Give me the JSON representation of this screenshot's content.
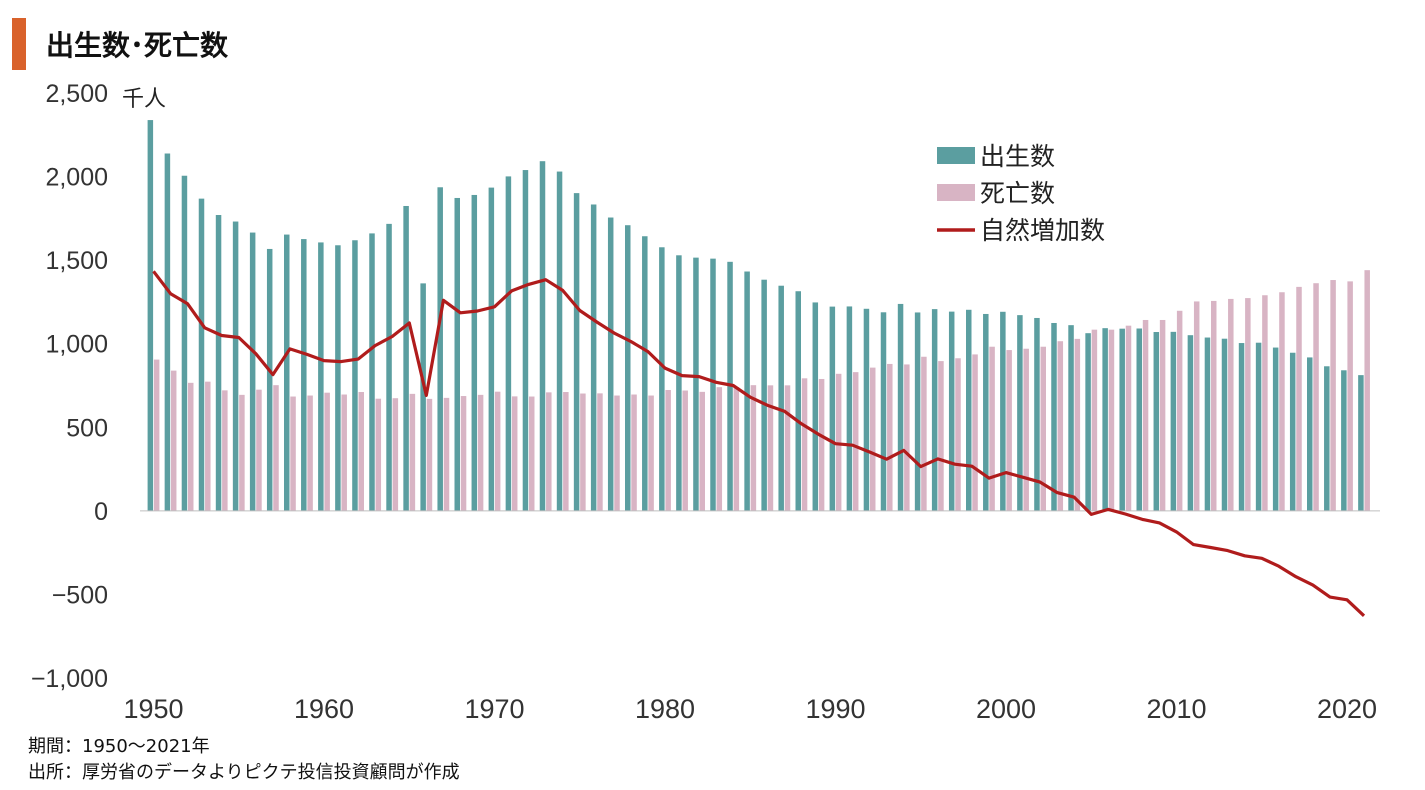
{
  "header": {
    "title": "出生数･死亡数",
    "accent_color": "#d9622b"
  },
  "footnotes": {
    "period": "期間：1950～2021年",
    "source": "出所：厚労省のデータよりピクテ投信投資顧問が作成"
  },
  "chart_data": {
    "type": "bar",
    "unit_label": "千人",
    "ylim": [
      -1000,
      2500
    ],
    "y_ticks": [
      2500,
      2000,
      1500,
      1000,
      500,
      0,
      -500,
      -1000
    ],
    "y_tick_labels": [
      "2,500",
      "2,000",
      "1,500",
      "1,000",
      "500",
      "0",
      "−500",
      "−1,000"
    ],
    "x_tick_labels": [
      "1950",
      "1960",
      "1970",
      "1980",
      "1990",
      "2000",
      "2010",
      "2020"
    ],
    "legend_position": "top-right",
    "grid": false,
    "colors": {
      "births": "#5b9ea0",
      "deaths": "#d8b4c4",
      "natural": "#b01c1c",
      "negative_tick": "#c0272d"
    },
    "x": [
      1950,
      1951,
      1952,
      1953,
      1954,
      1955,
      1956,
      1957,
      1958,
      1959,
      1960,
      1961,
      1962,
      1963,
      1964,
      1965,
      1966,
      1967,
      1968,
      1969,
      1970,
      1971,
      1972,
      1973,
      1974,
      1975,
      1976,
      1977,
      1978,
      1979,
      1980,
      1981,
      1982,
      1983,
      1984,
      1985,
      1986,
      1987,
      1988,
      1989,
      1990,
      1991,
      1992,
      1993,
      1994,
      1995,
      1996,
      1997,
      1998,
      1999,
      2000,
      2001,
      2002,
      2003,
      2004,
      2005,
      2006,
      2007,
      2008,
      2009,
      2010,
      2011,
      2012,
      2013,
      2014,
      2015,
      2016,
      2017,
      2018,
      2019,
      2020,
      2021
    ],
    "series": [
      {
        "name": "出生数",
        "kind": "bar",
        "values": [
          2338,
          2138,
          2005,
          1868,
          1770,
          1731,
          1665,
          1567,
          1653,
          1626,
          1606,
          1589,
          1619,
          1660,
          1717,
          1824,
          1361,
          1936,
          1872,
          1890,
          1934,
          2001,
          2039,
          2092,
          2030,
          1901,
          1833,
          1755,
          1709,
          1643,
          1577,
          1529,
          1515,
          1509,
          1490,
          1432,
          1383,
          1347,
          1314,
          1247,
          1222,
          1223,
          1209,
          1188,
          1238,
          1187,
          1207,
          1192,
          1203,
          1178,
          1191,
          1171,
          1154,
          1124,
          1111,
          1063,
          1093,
          1090,
          1091,
          1070,
          1071,
          1051,
          1037,
          1030,
          1004,
          1006,
          977,
          946,
          918,
          865,
          841,
          812
        ]
      },
      {
        "name": "死亡数",
        "kind": "bar",
        "values": [
          905,
          839,
          766,
          773,
          721,
          694,
          725,
          752,
          684,
          690,
          707,
          696,
          711,
          671,
          674,
          700,
          670,
          676,
          687,
          694,
          713,
          685,
          684,
          709,
          711,
          702,
          703,
          690,
          696,
          690,
          723,
          720,
          712,
          740,
          740,
          752,
          751,
          751,
          793,
          789,
          820,
          830,
          857,
          879,
          876,
          922,
          896,
          913,
          936,
          982,
          962,
          970,
          982,
          1015,
          1029,
          1084,
          1084,
          1108,
          1142,
          1142,
          1197,
          1253,
          1256,
          1268,
          1273,
          1290,
          1308,
          1340,
          1362,
          1381,
          1373,
          1440
        ]
      },
      {
        "name": "自然増加数",
        "kind": "line",
        "values": [
          1433,
          1299,
          1239,
          1095,
          1049,
          1037,
          940,
          815,
          969,
          936,
          899,
          893,
          908,
          989,
          1043,
          1124,
          691,
          1260,
          1185,
          1196,
          1221,
          1316,
          1355,
          1383,
          1319,
          1199,
          1130,
          1065,
          1013,
          953,
          854,
          809,
          803,
          769,
          750,
          680,
          632,
          596,
          521,
          458,
          402,
          393,
          352,
          309,
          362,
          265,
          311,
          279,
          267,
          196,
          229,
          201,
          172,
          109,
          82,
          -21,
          9,
          -19,
          -51,
          -72,
          -126,
          -202,
          -219,
          -238,
          -269,
          -284,
          -331,
          -394,
          -444,
          -516,
          -532,
          -628
        ]
      }
    ]
  }
}
